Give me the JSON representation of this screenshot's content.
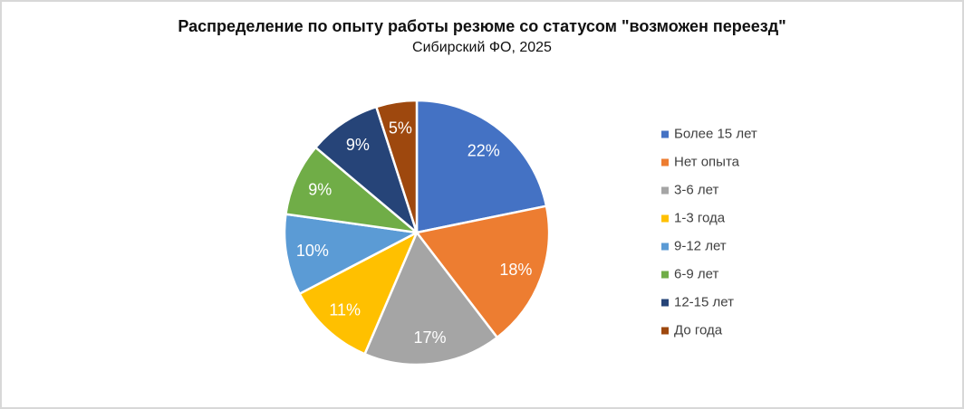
{
  "header": {
    "title": "Распределение по опыту работы резюме со статусом \"возможен переезд\"",
    "subtitle": "Сибирский ФО, 2025"
  },
  "chart_data": {
    "type": "pie",
    "title": "Распределение по опыту работы резюме со статусом \"возможен переезд\"",
    "subtitle": "Сибирский ФО, 2025",
    "legend_position": "right",
    "direction": "clockwise",
    "start_angle_deg": 0,
    "slice_border_color": "#ffffff",
    "label_color": "#ffffff",
    "items": [
      {
        "label": "Более 15 лет",
        "value": 22,
        "display": "22%",
        "color": "#4472c4"
      },
      {
        "label": "Нет опыта",
        "value": 18,
        "display": "18%",
        "color": "#ed7d31"
      },
      {
        "label": "3-6 лет",
        "value": 17,
        "display": "17%",
        "color": "#a5a5a5"
      },
      {
        "label": "1-3 года",
        "value": 11,
        "display": "11%",
        "color": "#ffc000"
      },
      {
        "label": "9-12 лет",
        "value": 10,
        "display": "10%",
        "color": "#5b9bd5"
      },
      {
        "label": "6-9 лет",
        "value": 9,
        "display": "9%",
        "color": "#70ad47"
      },
      {
        "label": "12-15 лет",
        "value": 9,
        "display": "9%",
        "color": "#264478"
      },
      {
        "label": "До года",
        "value": 5,
        "display": "5%",
        "color": "#9e480e"
      }
    ]
  }
}
